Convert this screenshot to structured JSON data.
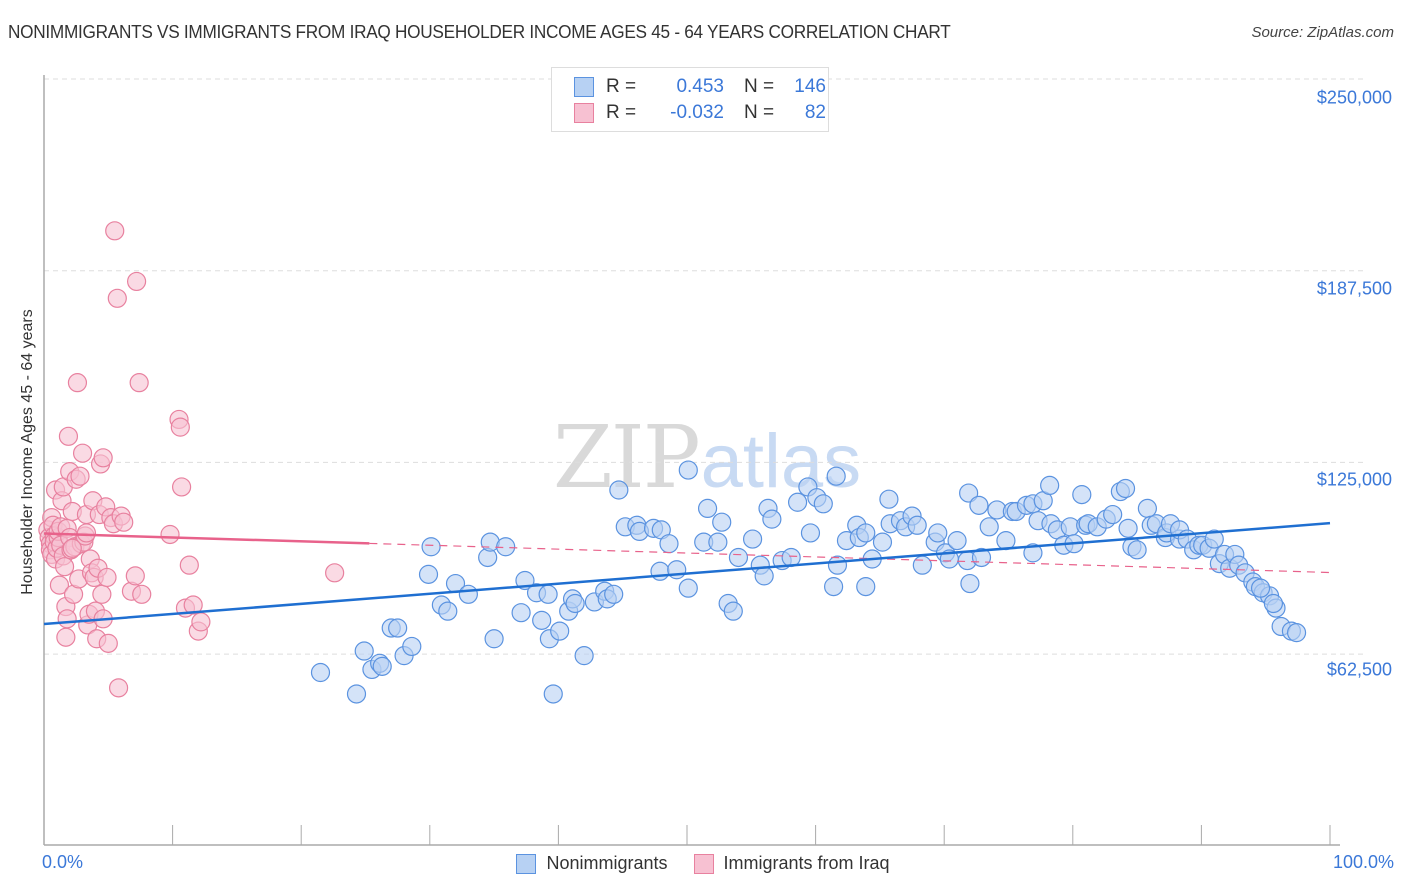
{
  "header": {
    "title": "NONIMMIGRANTS VS IMMIGRANTS FROM IRAQ HOUSEHOLDER INCOME AGES 45 - 64 YEARS CORRELATION CHART",
    "source": "Source: ZipAtlas.com"
  },
  "watermark": {
    "zip": "ZIP",
    "atlas": "atlas"
  },
  "colors": {
    "blue_fill": "#b7d1f3",
    "blue_stroke": "#5b93e0",
    "blue_line": "#1f6fd1",
    "pink_fill": "#f7c1d2",
    "pink_stroke": "#e8819f",
    "pink_line": "#e8628b",
    "tick_label": "#3b78d8",
    "grid": "#dddddd",
    "axis": "#aaaaaa"
  },
  "stats_legend": {
    "rows": [
      {
        "r_label": "R =",
        "r_value": "0.453",
        "n_label": "N =",
        "n_value": "146",
        "series": "Nonimmigrants"
      },
      {
        "r_label": "R =",
        "r_value": "-0.032",
        "n_label": "N =",
        "n_value": "82",
        "series": "Immigrants from Iraq"
      }
    ]
  },
  "axes": {
    "y_label": "Householder Income Ages 45 - 64 years",
    "y_ticks": [
      "$250,000",
      "$187,500",
      "$125,000",
      "$62,500"
    ],
    "x_min_label": "0.0%",
    "x_max_label": "100.0%"
  },
  "legend": {
    "items": [
      "Nonimmigrants",
      "Immigrants from Iraq"
    ]
  },
  "chart_data": {
    "type": "scatter",
    "title": "NONIMMIGRANTS VS IMMIGRANTS FROM IRAQ HOUSEHOLDER INCOME AGES 45 - 64 YEARS CORRELATION CHART",
    "xlabel": "",
    "ylabel": "Householder Income Ages 45 - 64 years",
    "xlim": [
      0,
      100
    ],
    "ylim": [
      0,
      256000
    ],
    "x_tick_labels": [
      "0.0%",
      "100.0%"
    ],
    "y_tick_values": [
      62500,
      125000,
      187500,
      250000
    ],
    "y_tick_labels": [
      "$62,500",
      "$125,000",
      "$187,500",
      "$250,000"
    ],
    "grid": true,
    "legend_position": "bottom",
    "series": [
      {
        "name": "Nonimmigrants",
        "R": 0.453,
        "N": 146,
        "trend": {
          "x": [
            0,
            100
          ],
          "y": [
            72300,
            105200
          ],
          "style": "solid"
        },
        "points": [
          [
            21.5,
            56500
          ],
          [
            24.3,
            49500
          ],
          [
            24.9,
            63500
          ],
          [
            25.5,
            57500
          ],
          [
            26.1,
            59500
          ],
          [
            26.3,
            58500
          ],
          [
            27.0,
            71000
          ],
          [
            27.5,
            71000
          ],
          [
            28.0,
            62000
          ],
          [
            28.6,
            65000
          ],
          [
            29.9,
            88500
          ],
          [
            30.1,
            97500
          ],
          [
            30.9,
            78500
          ],
          [
            31.4,
            76500
          ],
          [
            32.0,
            85500
          ],
          [
            33.0,
            82000
          ],
          [
            34.5,
            94000
          ],
          [
            34.7,
            99000
          ],
          [
            35.0,
            67500
          ],
          [
            35.9,
            97500
          ],
          [
            37.1,
            76000
          ],
          [
            37.4,
            86500
          ],
          [
            38.3,
            82500
          ],
          [
            38.7,
            73500
          ],
          [
            39.2,
            82000
          ],
          [
            39.3,
            67500
          ],
          [
            39.6,
            49500
          ],
          [
            40.1,
            70000
          ],
          [
            40.8,
            76500
          ],
          [
            41.1,
            80500
          ],
          [
            41.3,
            79000
          ],
          [
            42.0,
            62000
          ],
          [
            42.8,
            79500
          ],
          [
            43.6,
            83000
          ],
          [
            43.8,
            80500
          ],
          [
            44.3,
            82000
          ],
          [
            44.7,
            116000
          ],
          [
            45.2,
            104000
          ],
          [
            46.1,
            104500
          ],
          [
            46.3,
            102500
          ],
          [
            47.4,
            103500
          ],
          [
            47.9,
            89500
          ],
          [
            48.0,
            103000
          ],
          [
            48.6,
            98500
          ],
          [
            49.2,
            90000
          ],
          [
            50.1,
            84000
          ],
          [
            50.1,
            122500
          ],
          [
            51.3,
            99000
          ],
          [
            51.6,
            110000
          ],
          [
            52.4,
            99000
          ],
          [
            52.7,
            105500
          ],
          [
            53.2,
            79000
          ],
          [
            53.6,
            76500
          ],
          [
            54.0,
            94000
          ],
          [
            55.1,
            100000
          ],
          [
            55.7,
            91500
          ],
          [
            56.0,
            88000
          ],
          [
            56.3,
            110000
          ],
          [
            56.6,
            106500
          ],
          [
            57.4,
            93000
          ],
          [
            58.1,
            94000
          ],
          [
            58.6,
            112000
          ],
          [
            59.4,
            117000
          ],
          [
            59.6,
            102000
          ],
          [
            60.1,
            113500
          ],
          [
            60.6,
            111500
          ],
          [
            61.4,
            84500
          ],
          [
            61.7,
            91500
          ],
          [
            62.4,
            99500
          ],
          [
            63.2,
            104500
          ],
          [
            63.4,
            100500
          ],
          [
            63.9,
            102000
          ],
          [
            63.9,
            84500
          ],
          [
            64.4,
            93500
          ],
          [
            65.2,
            99000
          ],
          [
            65.7,
            113000
          ],
          [
            65.8,
            105000
          ],
          [
            66.6,
            106000
          ],
          [
            67.0,
            104000
          ],
          [
            67.5,
            107500
          ],
          [
            67.9,
            104500
          ],
          [
            68.3,
            91500
          ],
          [
            69.3,
            99000
          ],
          [
            69.5,
            102000
          ],
          [
            70.1,
            95500
          ],
          [
            70.4,
            93500
          ],
          [
            71.0,
            99500
          ],
          [
            71.8,
            93000
          ],
          [
            71.9,
            115000
          ],
          [
            72.0,
            85500
          ],
          [
            72.7,
            111000
          ],
          [
            72.9,
            94000
          ],
          [
            73.5,
            104000
          ],
          [
            74.1,
            109500
          ],
          [
            74.8,
            99500
          ],
          [
            75.3,
            109000
          ],
          [
            75.6,
            109000
          ],
          [
            76.4,
            111000
          ],
          [
            76.9,
            95500
          ],
          [
            76.9,
            111500
          ],
          [
            77.3,
            106000
          ],
          [
            77.7,
            112500
          ],
          [
            78.2,
            117500
          ],
          [
            78.3,
            105000
          ],
          [
            78.8,
            103000
          ],
          [
            79.3,
            98000
          ],
          [
            79.8,
            104000
          ],
          [
            80.1,
            98500
          ],
          [
            80.7,
            114500
          ],
          [
            81.0,
            104500
          ],
          [
            81.2,
            105000
          ],
          [
            81.9,
            104000
          ],
          [
            82.6,
            106500
          ],
          [
            83.1,
            108000
          ],
          [
            83.7,
            115500
          ],
          [
            84.1,
            116500
          ],
          [
            84.3,
            103500
          ],
          [
            84.6,
            97500
          ],
          [
            85.0,
            96500
          ],
          [
            85.8,
            110000
          ],
          [
            86.1,
            104500
          ],
          [
            86.5,
            105000
          ],
          [
            87.2,
            100500
          ],
          [
            87.3,
            102000
          ],
          [
            87.6,
            105000
          ],
          [
            88.3,
            100000
          ],
          [
            88.3,
            103000
          ],
          [
            88.9,
            100000
          ],
          [
            89.4,
            96500
          ],
          [
            89.8,
            98000
          ],
          [
            90.1,
            98000
          ],
          [
            90.6,
            97000
          ],
          [
            91.0,
            100000
          ],
          [
            91.4,
            92000
          ],
          [
            91.8,
            95000
          ],
          [
            92.2,
            90500
          ],
          [
            92.6,
            95000
          ],
          [
            92.9,
            91500
          ],
          [
            93.4,
            89000
          ],
          [
            94.0,
            86000
          ],
          [
            94.2,
            84500
          ],
          [
            94.8,
            82500
          ],
          [
            95.3,
            81500
          ],
          [
            95.8,
            77500
          ],
          [
            96.2,
            71500
          ],
          [
            97.0,
            70000
          ],
          [
            97.4,
            69500
          ],
          [
            94.6,
            84000
          ],
          [
            95.6,
            79000
          ],
          [
            61.6,
            120500
          ]
        ]
      },
      {
        "name": "Immigrants from Iraq",
        "R": -0.032,
        "N": 82,
        "trend": {
          "x": [
            0,
            100
          ],
          "y": [
            101800,
            89100
          ],
          "solid_until_x": 25.3,
          "style": "solid then dashed"
        },
        "points": [
          [
            0.3,
            103000
          ],
          [
            0.4,
            100500
          ],
          [
            0.5,
            98500
          ],
          [
            0.5,
            96500
          ],
          [
            0.6,
            107000
          ],
          [
            0.6,
            95000
          ],
          [
            0.7,
            104500
          ],
          [
            0.8,
            101000
          ],
          [
            0.8,
            99000
          ],
          [
            0.9,
            116000
          ],
          [
            0.9,
            93500
          ],
          [
            1.0,
            97000
          ],
          [
            1.1,
            100500
          ],
          [
            1.1,
            102500
          ],
          [
            1.2,
            85000
          ],
          [
            1.3,
            104000
          ],
          [
            1.3,
            98000
          ],
          [
            1.4,
            112500
          ],
          [
            1.5,
            117000
          ],
          [
            1.5,
            94500
          ],
          [
            1.6,
            91000
          ],
          [
            1.7,
            78000
          ],
          [
            1.7,
            68000
          ],
          [
            1.8,
            74000
          ],
          [
            1.8,
            103500
          ],
          [
            1.9,
            133500
          ],
          [
            2.0,
            122000
          ],
          [
            2.0,
            100500
          ],
          [
            2.1,
            96500
          ],
          [
            2.2,
            109000
          ],
          [
            2.3,
            82000
          ],
          [
            2.4,
            97500
          ],
          [
            2.5,
            119500
          ],
          [
            2.6,
            151000
          ],
          [
            2.7,
            87000
          ],
          [
            2.8,
            120500
          ],
          [
            2.9,
            98500
          ],
          [
            3.0,
            128000
          ],
          [
            3.1,
            99000
          ],
          [
            3.2,
            101000
          ],
          [
            3.3,
            108000
          ],
          [
            3.4,
            72000
          ],
          [
            3.5,
            75500
          ],
          [
            3.6,
            93500
          ],
          [
            3.7,
            89000
          ],
          [
            3.8,
            112500
          ],
          [
            3.9,
            87500
          ],
          [
            4.0,
            76500
          ],
          [
            4.1,
            67500
          ],
          [
            4.2,
            90500
          ],
          [
            4.3,
            108000
          ],
          [
            4.4,
            124500
          ],
          [
            4.5,
            82000
          ],
          [
            4.6,
            74000
          ],
          [
            4.6,
            126500
          ],
          [
            4.8,
            110500
          ],
          [
            4.9,
            87500
          ],
          [
            5.0,
            66000
          ],
          [
            5.2,
            107000
          ],
          [
            5.4,
            105000
          ],
          [
            5.5,
            200500
          ],
          [
            5.7,
            178500
          ],
          [
            5.8,
            51500
          ],
          [
            6.0,
            107500
          ],
          [
            6.2,
            105500
          ],
          [
            6.8,
            83000
          ],
          [
            7.1,
            88000
          ],
          [
            7.2,
            184000
          ],
          [
            7.4,
            151000
          ],
          [
            9.8,
            101500
          ],
          [
            10.5,
            139000
          ],
          [
            10.6,
            136500
          ],
          [
            10.7,
            117000
          ],
          [
            11.3,
            91500
          ],
          [
            11.0,
            77500
          ],
          [
            11.6,
            78500
          ],
          [
            12.0,
            70000
          ],
          [
            12.2,
            73000
          ],
          [
            3.3,
            102000
          ],
          [
            2.2,
            97000
          ],
          [
            22.6,
            89000
          ],
          [
            7.6,
            82000
          ]
        ]
      }
    ]
  }
}
